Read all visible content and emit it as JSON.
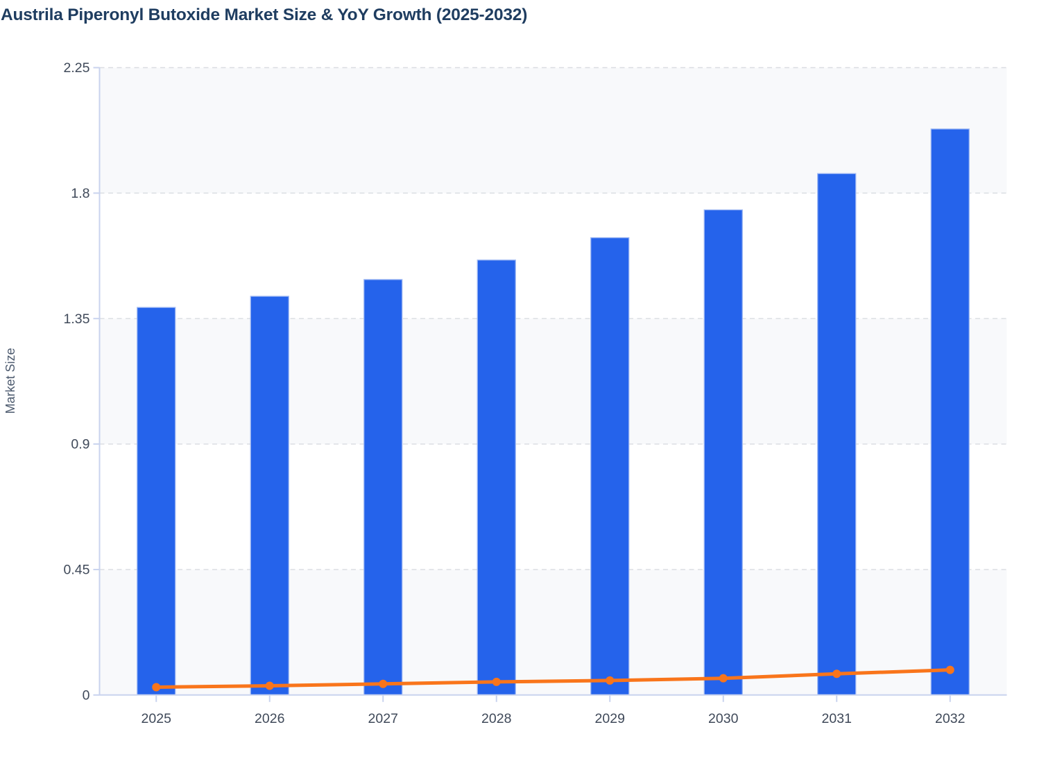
{
  "title": "Austrila Piperonyl Butoxide Market Size & YoY Growth (2025-2032)",
  "chart_data": {
    "type": "combo",
    "title": "Austrila Piperonyl Butoxide Market Size & YoY Growth (2025-2032)",
    "categories": [
      "2025",
      "2026",
      "2027",
      "2028",
      "2029",
      "2030",
      "2031",
      "2032"
    ],
    "series": [
      {
        "name": "Market Size",
        "type": "bar",
        "values": [
          1.39,
          1.43,
          1.49,
          1.56,
          1.64,
          1.74,
          1.87,
          2.03
        ]
      },
      {
        "name": "YoY Growth",
        "type": "line",
        "values": [
          0.028,
          0.033,
          0.04,
          0.047,
          0.052,
          0.06,
          0.076,
          0.09
        ]
      }
    ],
    "xlabel": "",
    "ylabel": "Market Size",
    "ylim": [
      0,
      2.25
    ],
    "ytick_labels": [
      "0",
      "0.45",
      "0.9",
      "1.35",
      "1.8",
      "2.25"
    ],
    "grid": "horizontal-dashed",
    "legend": "none",
    "plot_bands": "alternating-horizontal"
  },
  "colors": {
    "bar": "#2563eb",
    "bar_border": "#9db7f3",
    "line": "#f9751b",
    "axis": "#c9d3ee",
    "grid": "#d9dce1",
    "band": "#f8f9fb",
    "tick_text": "#3f4959",
    "title_text": "#1f3d60",
    "axis_title_text": "#4c5a6e"
  }
}
